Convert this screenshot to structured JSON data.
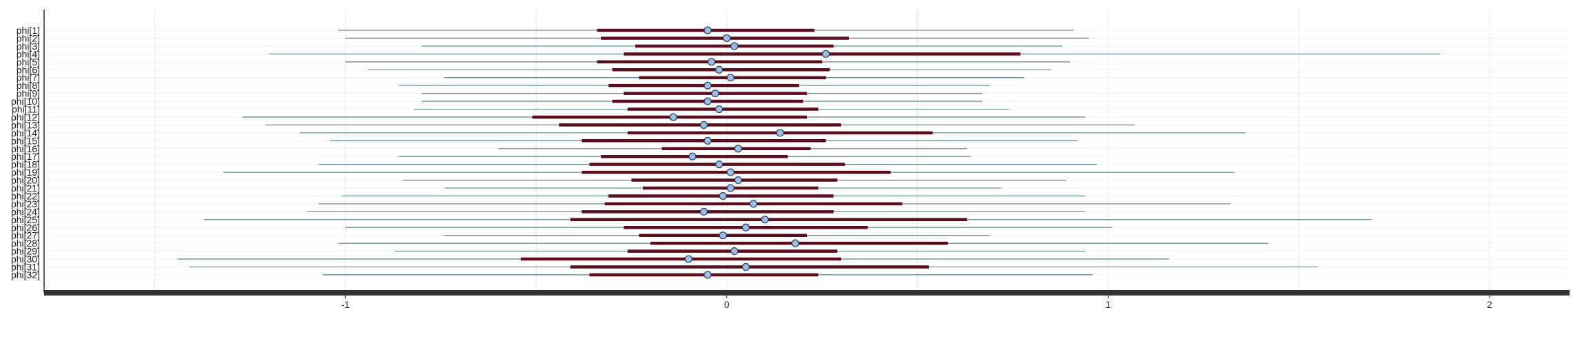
{
  "chart_data": {
    "type": "forest",
    "xlim": [
      -1.79,
      2.21
    ],
    "xticks": [
      -1,
      0,
      1,
      2
    ],
    "xtick_labels": [
      "-1",
      "0",
      "1",
      "2"
    ],
    "grid": true,
    "colors": {
      "outer_interval": "#6a8e8e",
      "inner_interval": "#5b0f1e",
      "point_fill": "#9bbde6",
      "point_stroke": "#2d3e55",
      "grid": "#e9e9e9",
      "axis": "#333333"
    },
    "params": [
      {
        "label": "phi[1]",
        "outer": [
          -1.02,
          0.91
        ],
        "inner": [
          -0.34,
          0.23
        ],
        "point": -0.05
      },
      {
        "label": "phi[2]",
        "outer": [
          -1.0,
          0.95
        ],
        "inner": [
          -0.33,
          0.32
        ],
        "point": 0.0
      },
      {
        "label": "phi[3]",
        "outer": [
          -0.8,
          0.88
        ],
        "inner": [
          -0.24,
          0.28
        ],
        "point": 0.02
      },
      {
        "label": "phi[4]",
        "outer": [
          -1.2,
          1.87
        ],
        "inner": [
          -0.27,
          0.77
        ],
        "point": 0.26
      },
      {
        "label": "phi[5]",
        "outer": [
          -1.0,
          0.9
        ],
        "inner": [
          -0.34,
          0.25
        ],
        "point": -0.04
      },
      {
        "label": "phi[6]",
        "outer": [
          -0.94,
          0.85
        ],
        "inner": [
          -0.3,
          0.27
        ],
        "point": -0.02
      },
      {
        "label": "phi[7]",
        "outer": [
          -0.74,
          0.78
        ],
        "inner": [
          -0.23,
          0.26
        ],
        "point": 0.01
      },
      {
        "label": "phi[8]",
        "outer": [
          -0.86,
          0.69
        ],
        "inner": [
          -0.31,
          0.19
        ],
        "point": -0.05
      },
      {
        "label": "phi[9]",
        "outer": [
          -0.8,
          0.67
        ],
        "inner": [
          -0.27,
          0.21
        ],
        "point": -0.03
      },
      {
        "label": "phi[10]",
        "outer": [
          -0.8,
          0.67
        ],
        "inner": [
          -0.3,
          0.2
        ],
        "point": -0.05
      },
      {
        "label": "phi[11]",
        "outer": [
          -0.82,
          0.74
        ],
        "inner": [
          -0.26,
          0.24
        ],
        "point": -0.02
      },
      {
        "label": "phi[12]",
        "outer": [
          -1.27,
          0.94
        ],
        "inner": [
          -0.51,
          0.21
        ],
        "point": -0.14
      },
      {
        "label": "phi[13]",
        "outer": [
          -1.21,
          1.07
        ],
        "inner": [
          -0.44,
          0.3
        ],
        "point": -0.06
      },
      {
        "label": "phi[14]",
        "outer": [
          -1.12,
          1.36
        ],
        "inner": [
          -0.26,
          0.54
        ],
        "point": 0.14
      },
      {
        "label": "phi[15]",
        "outer": [
          -1.04,
          0.92
        ],
        "inner": [
          -0.38,
          0.26
        ],
        "point": -0.05
      },
      {
        "label": "phi[16]",
        "outer": [
          -0.6,
          0.63
        ],
        "inner": [
          -0.17,
          0.22
        ],
        "point": 0.03
      },
      {
        "label": "phi[17]",
        "outer": [
          -0.86,
          0.64
        ],
        "inner": [
          -0.33,
          0.16
        ],
        "point": -0.09
      },
      {
        "label": "phi[18]",
        "outer": [
          -1.07,
          0.97
        ],
        "inner": [
          -0.36,
          0.31
        ],
        "point": -0.02
      },
      {
        "label": "phi[19]",
        "outer": [
          -1.32,
          1.33
        ],
        "inner": [
          -0.38,
          0.43
        ],
        "point": 0.01
      },
      {
        "label": "phi[20]",
        "outer": [
          -0.85,
          0.89
        ],
        "inner": [
          -0.25,
          0.29
        ],
        "point": 0.03
      },
      {
        "label": "phi[21]",
        "outer": [
          -0.74,
          0.72
        ],
        "inner": [
          -0.22,
          0.24
        ],
        "point": 0.01
      },
      {
        "label": "phi[22]",
        "outer": [
          -1.01,
          0.94
        ],
        "inner": [
          -0.31,
          0.28
        ],
        "point": -0.01
      },
      {
        "label": "phi[23]",
        "outer": [
          -1.07,
          1.32
        ],
        "inner": [
          -0.32,
          0.46
        ],
        "point": 0.07
      },
      {
        "label": "phi[24]",
        "outer": [
          -1.1,
          0.94
        ],
        "inner": [
          -0.38,
          0.28
        ],
        "point": -0.06
      },
      {
        "label": "phi[25]",
        "outer": [
          -1.37,
          1.69
        ],
        "inner": [
          -0.41,
          0.63
        ],
        "point": 0.1
      },
      {
        "label": "phi[26]",
        "outer": [
          -1.0,
          1.01
        ],
        "inner": [
          -0.27,
          0.37
        ],
        "point": 0.05
      },
      {
        "label": "phi[27]",
        "outer": [
          -0.74,
          0.69
        ],
        "inner": [
          -0.23,
          0.21
        ],
        "point": -0.01
      },
      {
        "label": "phi[28]",
        "outer": [
          -1.02,
          1.42
        ],
        "inner": [
          -0.2,
          0.58
        ],
        "point": 0.18
      },
      {
        "label": "phi[29]",
        "outer": [
          -0.87,
          0.94
        ],
        "inner": [
          -0.26,
          0.29
        ],
        "point": 0.02
      },
      {
        "label": "phi[30]",
        "outer": [
          -1.44,
          1.16
        ],
        "inner": [
          -0.54,
          0.3
        ],
        "point": -0.1
      },
      {
        "label": "phi[31]",
        "outer": [
          -1.41,
          1.55
        ],
        "inner": [
          -0.41,
          0.53
        ],
        "point": 0.05
      },
      {
        "label": "phi[32]",
        "outer": [
          -1.06,
          0.96
        ],
        "inner": [
          -0.36,
          0.24
        ],
        "point": -0.05
      }
    ]
  }
}
